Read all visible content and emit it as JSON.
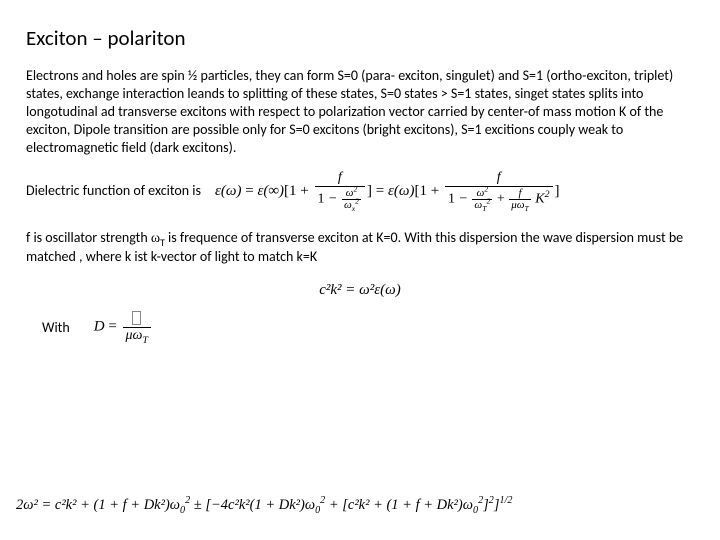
{
  "title": "Exciton – polariton",
  "paragraph1": "Electrons and holes are spin ½ particles, they can form S=0 (para- exciton, singulet) and S=1 (ortho-exciton,  triplet) states, exchange interaction leands to splitting of these states, S=0 states > S=1 states, singet states splits into longotudinal ad transverse excitons with respect to polarization vector carried by center-of mass motion K of the exciton, Dipole transition are possible only for S=0 excitons (bright excitons), S=1 excitions couply weak to electromagnetic field (dark excitons).",
  "dielectric_label": "Dielectric function of exciton is",
  "dielectric_eq": {
    "lhs": "ε(ω)",
    "mid": "ε(∞)",
    "f": "f",
    "den1_a": "ω",
    "den1_b": "ω",
    "sub_x": "x",
    "bracket2_lhs": "ε(ω)",
    "one": "1",
    "den2_sub": "T",
    "extra": "μω",
    "K": "K"
  },
  "paragraph2_a": "f is oscillator strength ",
  "paragraph2_omega": "ω",
  "paragraph2_sub": "T",
  "paragraph2_b": " is frequence of transverse exciton at K=0. With this dispersion the wave dispersion must be matched  , where k ist k-vector of light to match k=K",
  "center_eq": "c²k² = ω²ε(ω)",
  "with_label": "With",
  "D_eq": {
    "D": "D",
    "mu": "μω",
    "T": "T"
  },
  "big_eq": {
    "two_w2": "2ω²",
    "c2k2": "c²k²",
    "one_f_Dk2": "(1 + f + Dk²)",
    "w0_2": "ω",
    "sub0": "0",
    "neg4": "−4c²k²(1 + Dk²)",
    "plus": "[c²k² + (1 + f + Dk²)",
    "half": "1/2"
  },
  "colors": {
    "text": "#000000",
    "background": "#ffffff"
  }
}
